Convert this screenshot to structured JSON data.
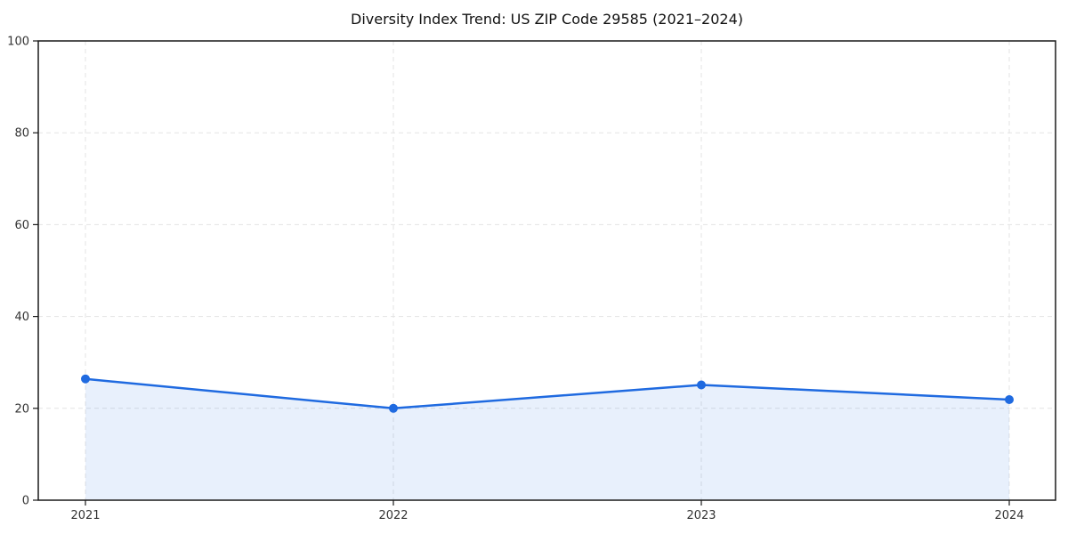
{
  "chart_data": {
    "type": "area",
    "title": "Diversity Index Trend: US ZIP Code 29585 (2021–2024)",
    "x": [
      "2021",
      "2022",
      "2023",
      "2024"
    ],
    "series": [
      {
        "name": "Diversity Index",
        "values": [
          26.4,
          20.0,
          25.1,
          21.9
        ]
      }
    ],
    "xlabel": "",
    "ylabel": "",
    "ylim": [
      0,
      100
    ],
    "yticks": [
      0,
      20,
      40,
      60,
      80,
      100
    ],
    "grid": true,
    "grid_style": "dashed",
    "legend_position": "none",
    "colors": {
      "line": "#1f6ae0",
      "marker": "#1f6ae0",
      "fill": "rgba(31, 106, 224, 0.10)",
      "grid": "#e3e3e3",
      "spine": "#1a1a1a",
      "tick_label": "#333333",
      "background": "#ffffff"
    }
  }
}
